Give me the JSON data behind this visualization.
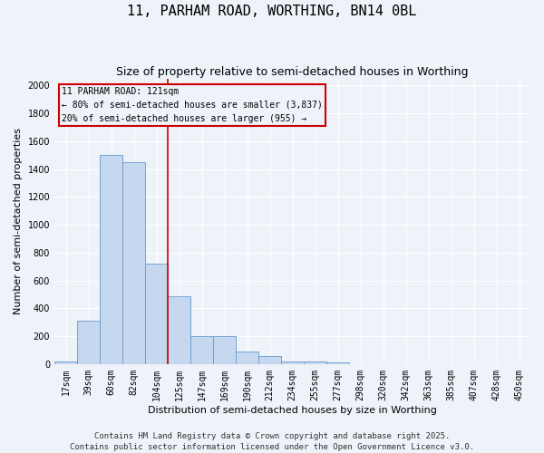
{
  "title": "11, PARHAM ROAD, WORTHING, BN14 0BL",
  "subtitle": "Size of property relative to semi-detached houses in Worthing",
  "xlabel": "Distribution of semi-detached houses by size in Worthing",
  "ylabel": "Number of semi-detached properties",
  "bar_labels": [
    "17sqm",
    "39sqm",
    "60sqm",
    "82sqm",
    "104sqm",
    "125sqm",
    "147sqm",
    "169sqm",
    "190sqm",
    "212sqm",
    "234sqm",
    "255sqm",
    "277sqm",
    "298sqm",
    "320sqm",
    "342sqm",
    "363sqm",
    "385sqm",
    "407sqm",
    "428sqm",
    "450sqm"
  ],
  "bar_values": [
    20,
    310,
    1500,
    1450,
    720,
    490,
    200,
    200,
    90,
    55,
    20,
    20,
    10,
    0,
    0,
    0,
    0,
    0,
    0,
    0,
    0
  ],
  "bar_color": "#c5d8f0",
  "bar_edge_color": "#6699cc",
  "red_line_x": 4.5,
  "annotation_title": "11 PARHAM ROAD: 121sqm",
  "annotation_line1": "← 80% of semi-detached houses are smaller (3,837)",
  "annotation_line2": "20% of semi-detached houses are larger (955) →",
  "annotation_color": "#cc0000",
  "ylim": [
    0,
    2050
  ],
  "yticks": [
    0,
    200,
    400,
    600,
    800,
    1000,
    1200,
    1400,
    1600,
    1800,
    2000
  ],
  "footer1": "Contains HM Land Registry data © Crown copyright and database right 2025.",
  "footer2": "Contains public sector information licensed under the Open Government Licence v3.0.",
  "bg_color": "#eef2f9",
  "grid_color": "#ffffff",
  "title_fontsize": 11,
  "subtitle_fontsize": 9,
  "axis_label_fontsize": 8,
  "tick_fontsize": 7,
  "footer_fontsize": 6.5,
  "annotation_fontsize": 7
}
